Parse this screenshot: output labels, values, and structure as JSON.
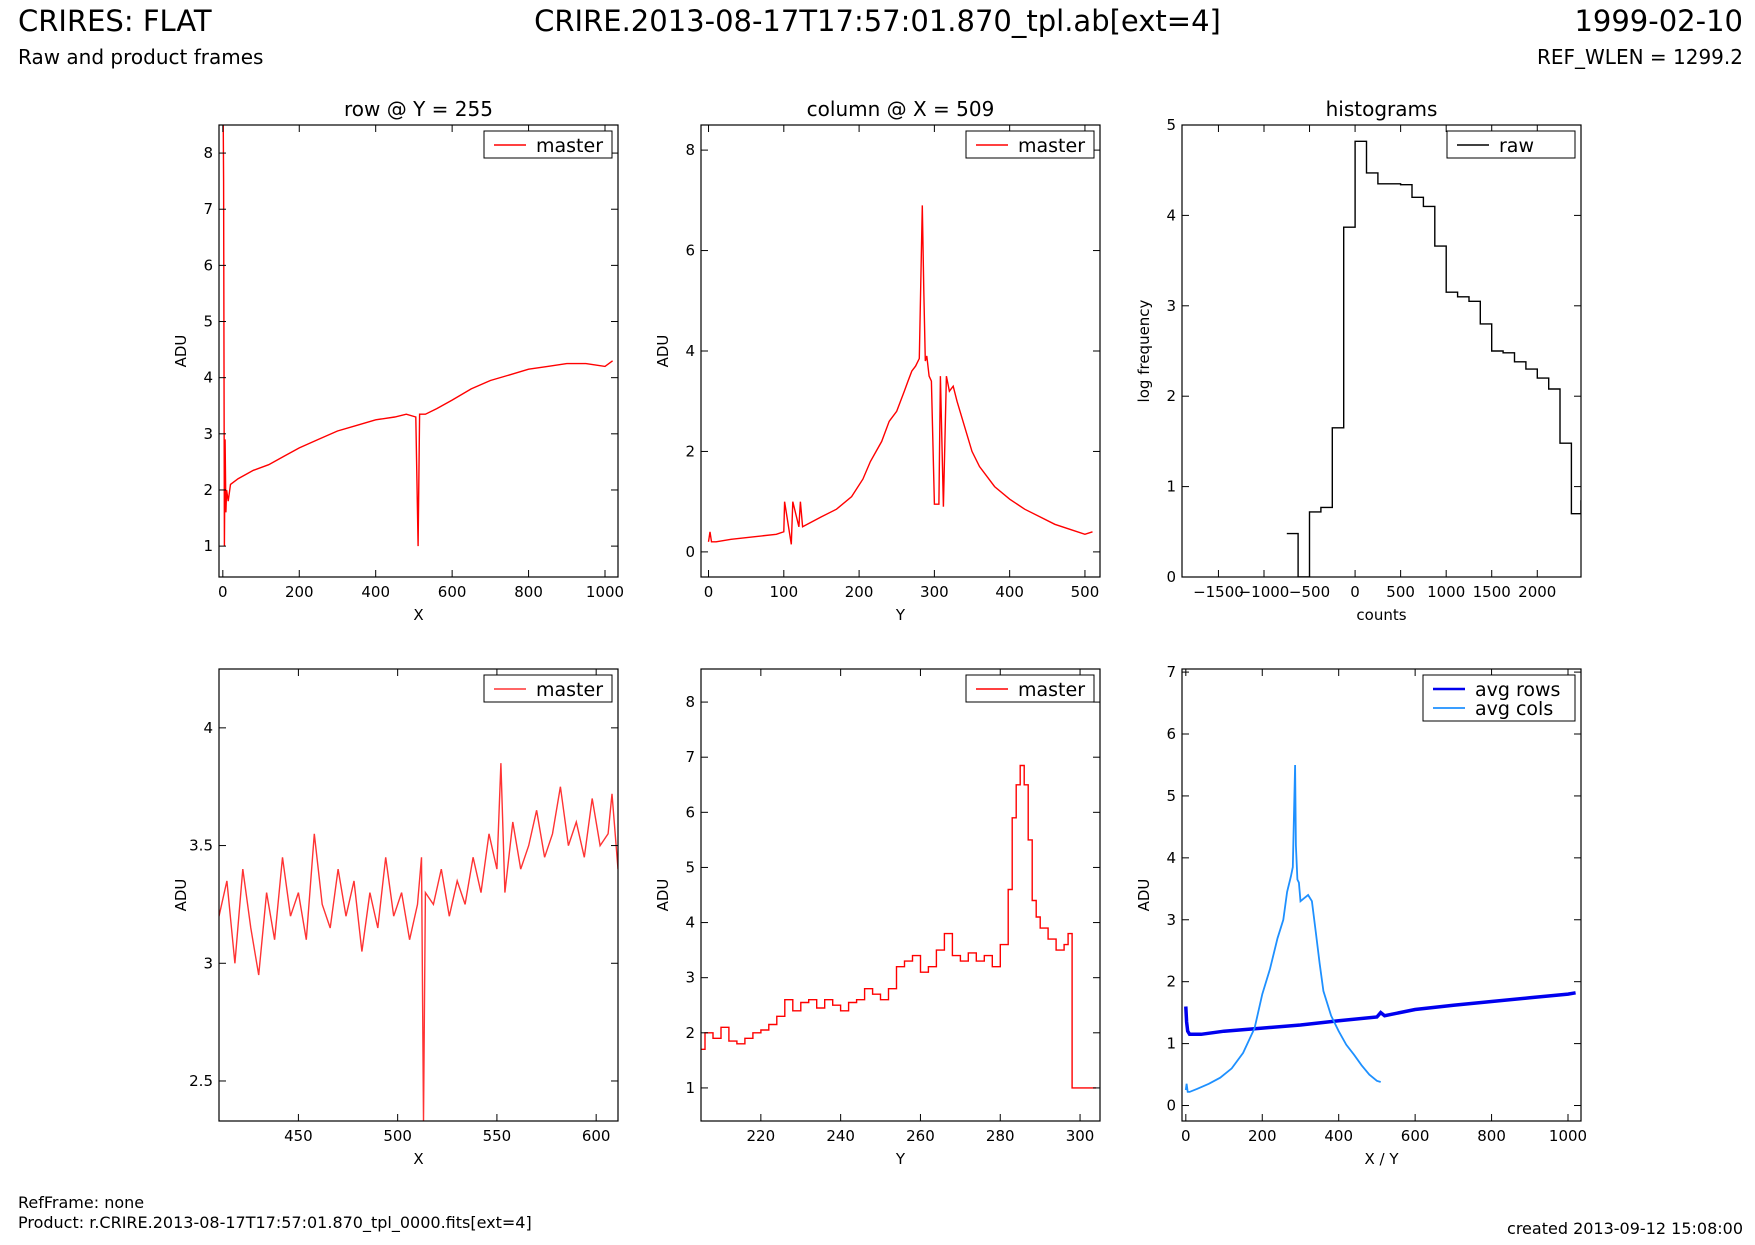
{
  "header": {
    "title": "CRIRES: FLAT",
    "subtitle": "Raw and product frames",
    "file": "CRIRE.2013-08-17T17:57:01.870_tpl.ab[ext=4]",
    "date": "1999-02-10",
    "ref_wlen": "REF_WLEN = 1299.2"
  },
  "footer": {
    "refframe": "RefFrame: none",
    "product": "Product: r.CRIRE.2013-08-17T17:57:01.870_tpl_0000.fits[ext=4]",
    "created": "created 2013-09-12 15:08:00"
  },
  "colors": {
    "red": "#ff0000",
    "black": "#000000",
    "blue": "#0000ee",
    "lightblue": "#1e90ff"
  },
  "chart_data": [
    {
      "id": "row-full",
      "type": "line",
      "title": "row @ Y = 255",
      "xlabel": "X",
      "ylabel": "ADU",
      "xlim": [
        -10,
        1034
      ],
      "ylim": [
        0.45,
        8.5
      ],
      "xticks": [
        0,
        200,
        400,
        600,
        800,
        1000
      ],
      "yticks": [
        1,
        2,
        3,
        4,
        5,
        6,
        7,
        8
      ],
      "legend": "top-right",
      "series": [
        {
          "name": "master",
          "color": "#ff0000",
          "x": [
            0,
            2,
            4,
            6,
            8,
            10,
            14,
            20,
            40,
            80,
            120,
            160,
            200,
            250,
            300,
            350,
            400,
            450,
            480,
            505,
            511,
            515,
            530,
            560,
            600,
            650,
            700,
            750,
            800,
            850,
            900,
            950,
            1000,
            1020
          ],
          "y": [
            9.8,
            7.5,
            1.0,
            2.9,
            1.6,
            2.0,
            1.8,
            2.1,
            2.2,
            2.35,
            2.45,
            2.6,
            2.75,
            2.9,
            3.05,
            3.15,
            3.25,
            3.3,
            3.35,
            3.3,
            1.0,
            3.35,
            3.35,
            3.45,
            3.6,
            3.8,
            3.95,
            4.05,
            4.15,
            4.2,
            4.25,
            4.25,
            4.2,
            4.3
          ]
        }
      ]
    },
    {
      "id": "column-full",
      "type": "line",
      "title": "column @ X = 509",
      "xlabel": "Y",
      "ylabel": "ADU",
      "xlim": [
        -10,
        520
      ],
      "ylim": [
        -0.5,
        8.5
      ],
      "xticks": [
        0,
        100,
        200,
        300,
        400,
        500
      ],
      "yticks": [
        0,
        2,
        4,
        6,
        8
      ],
      "legend": "top-right",
      "series": [
        {
          "name": "master",
          "color": "#ff0000",
          "x": [
            0,
            2,
            4,
            10,
            30,
            60,
            90,
            100,
            101,
            110,
            112,
            120,
            122,
            125,
            150,
            170,
            190,
            205,
            215,
            230,
            240,
            250,
            255,
            260,
            265,
            270,
            275,
            280,
            284,
            286,
            288,
            290,
            293,
            296,
            300,
            306,
            308,
            312,
            316,
            320,
            325,
            330,
            340,
            350,
            360,
            380,
            400,
            420,
            440,
            460,
            480,
            500,
            510
          ],
          "y": [
            0.2,
            0.4,
            0.2,
            0.2,
            0.25,
            0.3,
            0.35,
            0.4,
            1.0,
            0.15,
            1.0,
            0.5,
            1.0,
            0.5,
            0.7,
            0.85,
            1.1,
            1.45,
            1.8,
            2.2,
            2.6,
            2.8,
            3.0,
            3.2,
            3.4,
            3.6,
            3.7,
            3.85,
            6.9,
            5.2,
            3.8,
            3.9,
            3.5,
            3.4,
            0.95,
            0.95,
            3.5,
            0.9,
            3.5,
            3.2,
            3.3,
            3.0,
            2.5,
            2.0,
            1.7,
            1.3,
            1.05,
            0.85,
            0.7,
            0.55,
            0.45,
            0.35,
            0.4
          ]
        }
      ]
    },
    {
      "id": "histograms",
      "type": "line",
      "title": "histograms",
      "xlabel": "counts",
      "ylabel": "log frequency",
      "xlim": [
        -1900,
        2480
      ],
      "ylim": [
        0,
        5
      ],
      "xticks": [
        -1500,
        -1000,
        -500,
        0,
        500,
        1000,
        1500,
        2000
      ],
      "yticks": [
        0,
        1,
        2,
        3,
        4,
        5
      ],
      "legend": "top-right",
      "series": [
        {
          "name": "raw",
          "color": "#000000",
          "step": "post",
          "x": [
            -750,
            -625,
            -500,
            -375,
            -250,
            -125,
            0,
            125,
            250,
            375,
            500,
            625,
            750,
            875,
            1000,
            1125,
            1250,
            1375,
            1500,
            1625,
            1750,
            1875,
            2000,
            2125,
            2250,
            2375,
            2480
          ],
          "y": [
            0.48,
            0.0,
            0.72,
            0.77,
            1.65,
            3.87,
            4.82,
            4.47,
            4.35,
            4.35,
            4.34,
            4.2,
            4.1,
            3.66,
            3.15,
            3.1,
            3.05,
            2.8,
            2.5,
            2.48,
            2.38,
            2.3,
            2.2,
            2.08,
            1.48,
            0.7,
            0.85
          ]
        }
      ]
    },
    {
      "id": "row-zoom",
      "type": "line",
      "xlabel": "X",
      "ylabel": "ADU",
      "xlim": [
        410,
        611
      ],
      "ylim": [
        2.33,
        4.25
      ],
      "xticks": [
        450,
        500,
        550,
        600
      ],
      "yticks": [
        2.5,
        3.0,
        3.5,
        4.0
      ],
      "legend": "top-right",
      "series": [
        {
          "name": "master",
          "color": "#ff3333",
          "x": [
            410,
            414,
            418,
            422,
            426,
            430,
            434,
            438,
            442,
            446,
            450,
            454,
            458,
            462,
            466,
            470,
            474,
            478,
            482,
            486,
            490,
            494,
            498,
            502,
            506,
            510,
            512,
            513,
            514,
            518,
            522,
            526,
            530,
            534,
            538,
            542,
            546,
            550,
            552,
            554,
            558,
            562,
            566,
            570,
            574,
            578,
            582,
            586,
            590,
            594,
            598,
            602,
            606,
            608,
            611
          ],
          "y": [
            3.2,
            3.35,
            3.0,
            3.4,
            3.15,
            2.95,
            3.3,
            3.1,
            3.45,
            3.2,
            3.3,
            3.1,
            3.55,
            3.25,
            3.15,
            3.4,
            3.2,
            3.35,
            3.05,
            3.3,
            3.15,
            3.45,
            3.2,
            3.3,
            3.1,
            3.25,
            3.45,
            2.33,
            3.3,
            3.25,
            3.4,
            3.2,
            3.35,
            3.25,
            3.45,
            3.3,
            3.55,
            3.4,
            3.85,
            3.3,
            3.6,
            3.4,
            3.5,
            3.65,
            3.45,
            3.55,
            3.75,
            3.5,
            3.6,
            3.45,
            3.7,
            3.5,
            3.55,
            3.72,
            3.4
          ]
        }
      ]
    },
    {
      "id": "column-zoom",
      "type": "line",
      "xlabel": "Y",
      "ylabel": "ADU",
      "xlim": [
        205,
        305
      ],
      "ylim": [
        0.4,
        8.6
      ],
      "xticks": [
        220,
        240,
        260,
        280,
        300
      ],
      "yticks": [
        1,
        2,
        3,
        4,
        5,
        6,
        7,
        8
      ],
      "legend": "top-right",
      "series": [
        {
          "name": "master",
          "color": "#ff0000",
          "step": "post",
          "x": [
            205,
            206,
            208,
            210,
            212,
            214,
            216,
            218,
            220,
            222,
            224,
            226,
            228,
            230,
            232,
            234,
            236,
            238,
            240,
            242,
            244,
            246,
            248,
            250,
            252,
            254,
            256,
            258,
            260,
            262,
            264,
            266,
            268,
            270,
            272,
            274,
            276,
            278,
            280,
            282,
            283,
            284,
            285,
            286,
            287,
            288,
            289,
            290,
            292,
            294,
            296,
            297,
            298,
            304
          ],
          "y": [
            1.7,
            2.0,
            1.9,
            2.1,
            1.85,
            1.8,
            1.9,
            2.0,
            2.05,
            2.15,
            2.3,
            2.6,
            2.4,
            2.55,
            2.6,
            2.45,
            2.6,
            2.5,
            2.4,
            2.55,
            2.6,
            2.8,
            2.7,
            2.6,
            2.8,
            3.2,
            3.3,
            3.4,
            3.1,
            3.2,
            3.5,
            3.8,
            3.4,
            3.3,
            3.45,
            3.3,
            3.4,
            3.2,
            3.6,
            4.6,
            5.9,
            6.5,
            6.85,
            6.5,
            5.5,
            4.4,
            4.1,
            3.9,
            3.7,
            3.5,
            3.6,
            3.8,
            1.0,
            1.0
          ]
        }
      ]
    },
    {
      "id": "averages",
      "type": "line",
      "xlabel": "X / Y",
      "ylabel": "ADU",
      "xlim": [
        -10,
        1034
      ],
      "ylim": [
        -0.25,
        7.05
      ],
      "xticks": [
        0,
        200,
        400,
        600,
        800,
        1000
      ],
      "yticks": [
        0,
        1,
        2,
        3,
        4,
        5,
        6,
        7
      ],
      "legend": "top-right",
      "series": [
        {
          "name": "avg rows",
          "color": "#0000ee",
          "width": 3.5,
          "x": [
            0,
            2,
            5,
            10,
            20,
            40,
            100,
            200,
            300,
            400,
            500,
            510,
            520,
            600,
            700,
            800,
            900,
            1000,
            1020
          ],
          "y": [
            1.6,
            1.35,
            1.2,
            1.15,
            1.15,
            1.15,
            1.2,
            1.25,
            1.3,
            1.37,
            1.43,
            1.5,
            1.45,
            1.55,
            1.62,
            1.68,
            1.74,
            1.8,
            1.82
          ]
        },
        {
          "name": "avg cols",
          "color": "#1e90ff",
          "width": 1.8,
          "x": [
            0,
            2,
            5,
            10,
            30,
            60,
            90,
            120,
            150,
            180,
            200,
            220,
            240,
            255,
            265,
            275,
            280,
            284,
            286,
            288,
            292,
            296,
            300,
            310,
            320,
            330,
            340,
            350,
            360,
            380,
            400,
            420,
            440,
            460,
            480,
            500,
            510
          ],
          "y": [
            0.25,
            0.35,
            0.22,
            0.22,
            0.27,
            0.35,
            0.45,
            0.6,
            0.85,
            1.25,
            1.8,
            2.2,
            2.7,
            3.0,
            3.45,
            3.7,
            3.85,
            5.0,
            5.5,
            4.2,
            3.65,
            3.6,
            3.3,
            3.35,
            3.4,
            3.3,
            2.8,
            2.3,
            1.85,
            1.45,
            1.2,
            0.98,
            0.82,
            0.65,
            0.5,
            0.4,
            0.38
          ]
        }
      ]
    }
  ]
}
